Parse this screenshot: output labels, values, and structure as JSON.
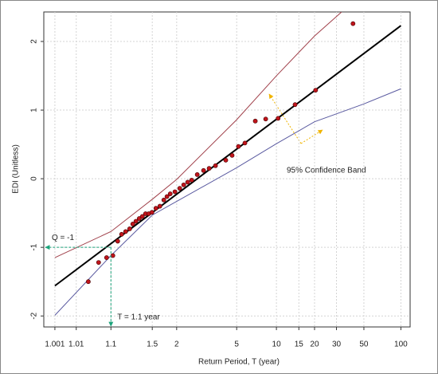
{
  "chart_data": {
    "type": "line",
    "x_label": "Return Period, T (year)",
    "y_label": "EDI (Unitless)",
    "xscale": "gumbel",
    "xlim": [
      1.0002,
      119
    ],
    "ylim": [
      -2.16,
      2.43
    ],
    "xticks": [
      1.001,
      1.01,
      1.1,
      1.5,
      2,
      5,
      10,
      15,
      20,
      30,
      50,
      100
    ],
    "yticks": [
      -2,
      -1,
      0,
      1,
      2
    ],
    "grid": true,
    "series": [
      {
        "style": "line",
        "color": "#a0404a",
        "x": [
          1.001,
          1.1,
          1.5,
          2,
          5,
          10,
          20,
          33
        ],
        "values": [
          -1.15,
          -0.77,
          -0.3,
          -0.01,
          0.86,
          1.5,
          2.08,
          2.43
        ]
      },
      {
        "style": "line",
        "color": "#5a5aa0",
        "x": [
          1.001,
          1.1,
          1.5,
          2,
          5,
          10,
          20,
          50,
          100
        ],
        "values": [
          -1.99,
          -1.12,
          -0.53,
          -0.33,
          0.16,
          0.51,
          0.83,
          1.09,
          1.31
        ]
      },
      {
        "style": "line",
        "color": "#000000",
        "x": [
          1.001,
          100
        ],
        "values": [
          -1.56,
          2.23
        ]
      },
      {
        "style": "points",
        "color": "#c0141b",
        "x": [
          1.026,
          1.051,
          1.08,
          1.11,
          1.138,
          1.164,
          1.194,
          1.228,
          1.257,
          1.289,
          1.325,
          1.362,
          1.403,
          1.447,
          1.495,
          1.559,
          1.629,
          1.705,
          1.77,
          1.842,
          1.956,
          2.083,
          2.198,
          2.323,
          2.459,
          2.667,
          2.933,
          3.195,
          3.53,
          4.17,
          4.63,
          5.15,
          5.75,
          6.88,
          8.26,
          10.3,
          14.0,
          20.4,
          40.8
        ],
        "values": [
          -1.5,
          -1.22,
          -1.15,
          -1.12,
          -0.91,
          -0.81,
          -0.77,
          -0.73,
          -0.66,
          -0.62,
          -0.58,
          -0.55,
          -0.51,
          -0.51,
          -0.49,
          -0.43,
          -0.4,
          -0.31,
          -0.26,
          -0.22,
          -0.19,
          -0.14,
          -0.09,
          -0.05,
          -0.02,
          0.06,
          0.12,
          0.15,
          0.19,
          0.27,
          0.34,
          0.47,
          0.52,
          0.84,
          0.87,
          0.88,
          1.08,
          1.29,
          2.26
        ]
      }
    ],
    "guides": {
      "x": 1.1,
      "y": -1
    },
    "annotations": {
      "q": "Q = -1",
      "t": "T = 1.1 year",
      "band": "95% Confidence Band"
    }
  }
}
